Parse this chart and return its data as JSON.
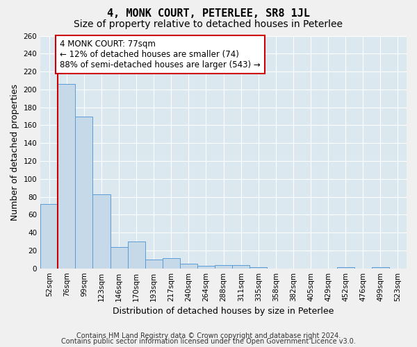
{
  "title": "4, MONK COURT, PETERLEE, SR8 1JL",
  "subtitle": "Size of property relative to detached houses in Peterlee",
  "xlabel": "Distribution of detached houses by size in Peterlee",
  "ylabel": "Number of detached properties",
  "footnote1": "Contains HM Land Registry data © Crown copyright and database right 2024.",
  "footnote2": "Contains public sector information licensed under the Open Government Licence v3.0.",
  "categories": [
    "52sqm",
    "76sqm",
    "99sqm",
    "123sqm",
    "146sqm",
    "170sqm",
    "193sqm",
    "217sqm",
    "240sqm",
    "264sqm",
    "288sqm",
    "311sqm",
    "335sqm",
    "358sqm",
    "382sqm",
    "405sqm",
    "429sqm",
    "452sqm",
    "476sqm",
    "499sqm",
    "523sqm"
  ],
  "bar_values": [
    72,
    206,
    170,
    83,
    24,
    30,
    10,
    11,
    5,
    3,
    4,
    4,
    1,
    0,
    0,
    0,
    0,
    1,
    0,
    1,
    0
  ],
  "bar_color": "#c6d9e8",
  "bar_edge_color": "#5b9bd5",
  "annotation_text": "4 MONK COURT: 77sqm\n← 12% of detached houses are smaller (74)\n88% of semi-detached houses are larger (543) →",
  "annotation_box_color": "#ffffff",
  "annotation_box_edge_color": "#cc0000",
  "property_line_color": "#cc0000",
  "ylim": [
    0,
    260
  ],
  "yticks": [
    0,
    20,
    40,
    60,
    80,
    100,
    120,
    140,
    160,
    180,
    200,
    220,
    240,
    260
  ],
  "axes_bg_color": "#dce8f0",
  "grid_color": "#ffffff",
  "title_fontsize": 11,
  "subtitle_fontsize": 10,
  "label_fontsize": 9,
  "tick_fontsize": 7.5,
  "footnote_fontsize": 7
}
